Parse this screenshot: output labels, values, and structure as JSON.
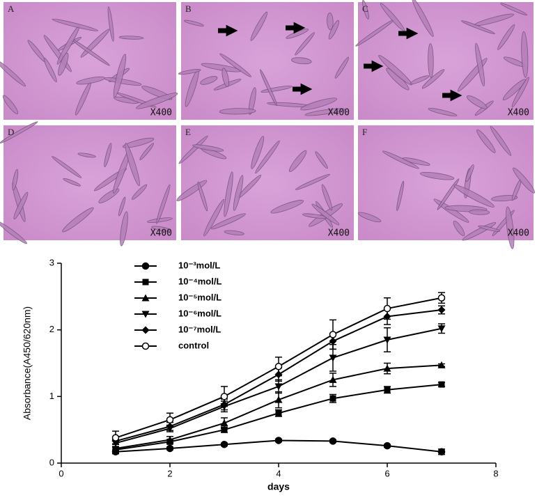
{
  "panels": [
    {
      "label": "A",
      "magnification": "X400"
    },
    {
      "label": "B",
      "magnification": "X400"
    },
    {
      "label": "C",
      "magnification": "X400"
    },
    {
      "label": "D",
      "magnification": "X400"
    },
    {
      "label": "E",
      "magnification": "X400"
    },
    {
      "label": "F",
      "magnification": "X400"
    }
  ],
  "chart_data": {
    "type": "line",
    "xlabel": "days",
    "ylabel": "Absorbance(A450/620nm)",
    "x": [
      1,
      2,
      3,
      4,
      5,
      6,
      7
    ],
    "xlim": [
      0,
      8
    ],
    "xticks": [
      0,
      2,
      4,
      6,
      8
    ],
    "ylim": [
      0,
      3
    ],
    "yticks": [
      0,
      1,
      2,
      3
    ],
    "series": [
      {
        "name": "10⁻³mol/L",
        "color": "#000000",
        "marker": "circle-filled",
        "values": [
          0.17,
          0.22,
          0.28,
          0.34,
          0.33,
          0.26,
          0.17
        ],
        "errors": [
          0.03,
          0.02,
          0.02,
          0.02,
          0.02,
          0.02,
          0.04
        ]
      },
      {
        "name": "10⁻⁴mol/L",
        "color": "#000000",
        "marker": "square",
        "values": [
          0.2,
          0.32,
          0.5,
          0.75,
          0.97,
          1.1,
          1.18
        ],
        "errors": [
          0.03,
          0.03,
          0.04,
          0.05,
          0.06,
          0.05,
          0.03
        ]
      },
      {
        "name": "10⁻⁵mol/L",
        "color": "#000000",
        "marker": "triangle-up",
        "values": [
          0.22,
          0.35,
          0.6,
          0.95,
          1.25,
          1.42,
          1.47
        ],
        "errors": [
          0.03,
          0.05,
          0.08,
          0.12,
          0.1,
          0.08,
          0.02
        ]
      },
      {
        "name": "10⁻⁶mol/L",
        "color": "#000000",
        "marker": "triangle-down",
        "values": [
          0.3,
          0.52,
          0.85,
          1.15,
          1.58,
          1.85,
          2.02
        ],
        "errors": [
          0.05,
          0.05,
          0.08,
          0.1,
          0.2,
          0.18,
          0.07
        ]
      },
      {
        "name": "10⁻⁷mol/L",
        "color": "#000000",
        "marker": "diamond",
        "values": [
          0.33,
          0.55,
          0.88,
          1.33,
          1.83,
          2.2,
          2.3
        ],
        "errors": [
          0.04,
          0.06,
          0.08,
          0.1,
          0.12,
          0.12,
          0.06
        ]
      },
      {
        "name": "control",
        "color": "#000000",
        "marker": "circle-open",
        "values": [
          0.38,
          0.65,
          1.0,
          1.45,
          1.93,
          2.32,
          2.48
        ],
        "errors": [
          0.1,
          0.1,
          0.15,
          0.14,
          0.22,
          0.16,
          0.08
        ]
      }
    ]
  }
}
